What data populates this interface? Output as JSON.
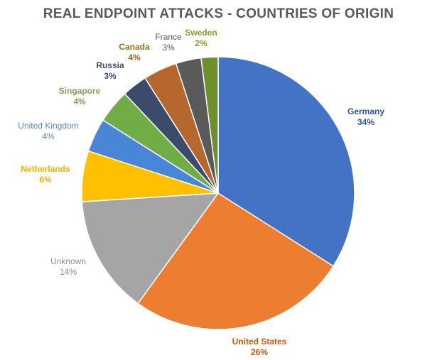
{
  "chart_data": {
    "type": "pie",
    "title": "REAL ENDPOINT ATTACKS - COUNTRIES OF ORIGIN",
    "slices": [
      {
        "label": "Germany",
        "value": 34,
        "value_label": "34%",
        "color": "#4472C4",
        "label_color": "#2F5597",
        "bold": true
      },
      {
        "label": "United States",
        "value": 26,
        "value_label": "26%",
        "color": "#ED7D31",
        "label_color": "#C55A11",
        "bold": true
      },
      {
        "label": "Unknown",
        "value": 14,
        "value_label": "14%",
        "color": "#A5A5A5",
        "label_color": "#8C8C8C",
        "bold": false
      },
      {
        "label": "Netherlands",
        "value": 6,
        "value_label": "6%",
        "color": "#FFC000",
        "label_color": "#F5B000",
        "bold": true
      },
      {
        "label": "United Kingdom",
        "value": 4,
        "value_label": "4%",
        "color": "#4A86D8",
        "label_color": "#5B86C5",
        "bold": false
      },
      {
        "label": "Singapore",
        "value": 4,
        "value_label": "4%",
        "color": "#70AD47",
        "label_color": "#84A05A",
        "bold": true
      },
      {
        "label": "Russia",
        "value": 3,
        "value_label": "3%",
        "color": "#3B4C6A",
        "label_color": "#3B4C75",
        "bold": true
      },
      {
        "label": "Canada",
        "value": 4,
        "value_label": "4%",
        "color": "#B5672E",
        "label_color": "#9A6A1C",
        "bold": true
      },
      {
        "label": "France",
        "value": 3,
        "value_label": "3%",
        "color": "#5A5A5A",
        "label_color": "#595959",
        "bold": false
      },
      {
        "label": "Sweden",
        "value": 2,
        "value_label": "2%",
        "color": "#6E8F2E",
        "label_color": "#8A9A2A",
        "bold": true
      }
    ],
    "legend": "none"
  }
}
